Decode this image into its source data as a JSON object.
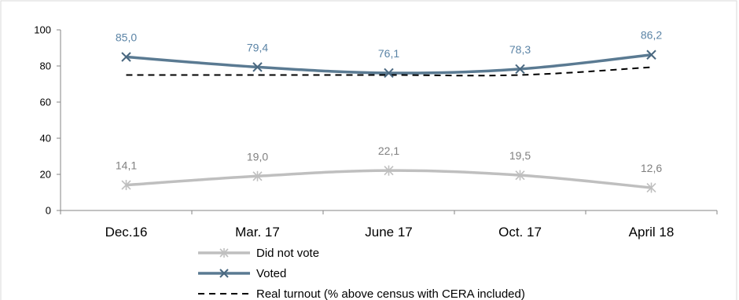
{
  "chart_data": {
    "type": "line",
    "categories": [
      "Dec.16",
      "Mar. 17",
      "June 17",
      "Oct. 17",
      "April 18"
    ],
    "ylim": [
      0,
      100
    ],
    "yticks": [
      0,
      20,
      40,
      60,
      80,
      100
    ],
    "grid": false,
    "legend_position": "bottom-left",
    "series": [
      {
        "name": "Did not vote",
        "values": [
          14.1,
          19.0,
          22.1,
          19.5,
          12.6
        ],
        "labels": [
          "14,1",
          "19,0",
          "22,1",
          "19,5",
          "12,6"
        ],
        "color": "#bfbfbf",
        "label_color": "#808080",
        "marker": "asterisk"
      },
      {
        "name": "Voted",
        "values": [
          85.0,
          79.4,
          76.1,
          78.3,
          86.2
        ],
        "labels": [
          "85,0",
          "79,4",
          "76,1",
          "78,3",
          "86,2"
        ],
        "color": "#5a7a92",
        "label_color": "#5b84a6",
        "marker": "x"
      },
      {
        "name": "Real turnout (% above census with CERA included)",
        "values": [
          75.0,
          75.0,
          75.0,
          75.0,
          79.3
        ],
        "color": "#000000",
        "line_style": "dashed"
      }
    ]
  }
}
